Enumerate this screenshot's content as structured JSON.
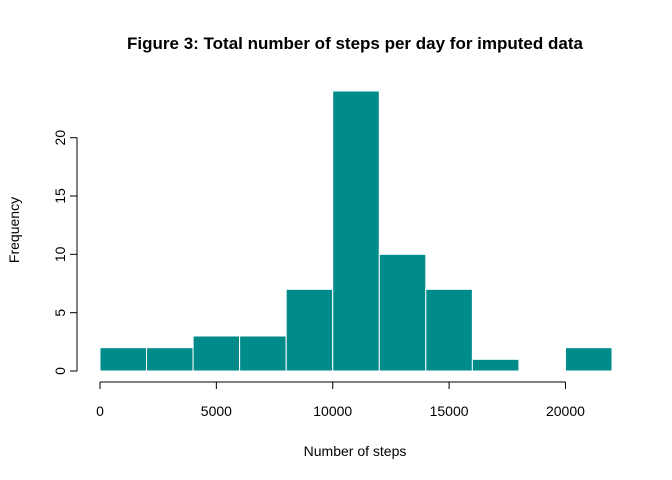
{
  "chart_data": {
    "type": "bar",
    "subtype": "histogram",
    "title": "Figure 3: Total number of steps per day for imputed data",
    "xlabel": "Number of steps",
    "ylabel": "Frequency",
    "bin_width": 2000,
    "bins": [
      {
        "start": 0,
        "end": 2000,
        "count": 2
      },
      {
        "start": 2000,
        "end": 4000,
        "count": 2
      },
      {
        "start": 4000,
        "end": 6000,
        "count": 3
      },
      {
        "start": 6000,
        "end": 8000,
        "count": 3
      },
      {
        "start": 8000,
        "end": 10000,
        "count": 7
      },
      {
        "start": 10000,
        "end": 12000,
        "count": 24
      },
      {
        "start": 12000,
        "end": 14000,
        "count": 10
      },
      {
        "start": 14000,
        "end": 16000,
        "count": 7
      },
      {
        "start": 16000,
        "end": 18000,
        "count": 1
      },
      {
        "start": 18000,
        "end": 20000,
        "count": 0
      },
      {
        "start": 20000,
        "end": 22000,
        "count": 2
      }
    ],
    "xlim": [
      0,
      22000
    ],
    "ylim": [
      0,
      24
    ],
    "x_ticks": [
      0,
      5000,
      10000,
      15000,
      20000
    ],
    "y_ticks": [
      0,
      5,
      10,
      15,
      20
    ],
    "bar_color": "#008B8B",
    "bar_border_color": "#ffffff",
    "grid": false,
    "legend": "none"
  }
}
